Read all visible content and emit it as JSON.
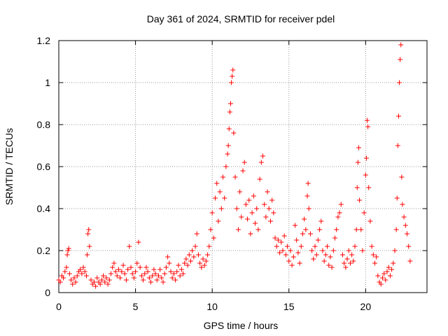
{
  "chart_data": {
    "type": "scatter",
    "title": "Day 361 of 2024, SRMTID for receiver pdel",
    "xlabel": "GPS time / hours",
    "ylabel": "SRMTID / TECUs",
    "xlim": [
      0,
      24
    ],
    "ylim": [
      0,
      1.2
    ],
    "xticks": [
      0,
      5,
      10,
      15,
      20
    ],
    "xtick_labels": [
      "0",
      "5",
      "10",
      "15",
      "20"
    ],
    "yticks": [
      0,
      0.2,
      0.4,
      0.6,
      0.8,
      1.0,
      1.2
    ],
    "ytick_labels": [
      "0",
      "0.2",
      "0.4",
      "0.6",
      "0.8",
      "1",
      "1.2"
    ],
    "grid": true,
    "marker": "+",
    "color": "#ff0000",
    "series": [
      {
        "name": "SRMTID",
        "points": [
          [
            0.0,
            0.06
          ],
          [
            0.1,
            0.05
          ],
          [
            0.2,
            0.08
          ],
          [
            0.3,
            0.07
          ],
          [
            0.4,
            0.1
          ],
          [
            0.5,
            0.12
          ],
          [
            0.55,
            0.18
          ],
          [
            0.6,
            0.2
          ],
          [
            0.65,
            0.21
          ],
          [
            0.7,
            0.09
          ],
          [
            0.8,
            0.06
          ],
          [
            0.9,
            0.04
          ],
          [
            1.0,
            0.07
          ],
          [
            1.1,
            0.05
          ],
          [
            1.2,
            0.08
          ],
          [
            1.3,
            0.1
          ],
          [
            1.4,
            0.11
          ],
          [
            1.5,
            0.09
          ],
          [
            1.6,
            0.12
          ],
          [
            1.7,
            0.1
          ],
          [
            1.8,
            0.08
          ],
          [
            1.85,
            0.18
          ],
          [
            1.9,
            0.28
          ],
          [
            1.95,
            0.3
          ],
          [
            2.0,
            0.22
          ],
          [
            2.1,
            0.06
          ],
          [
            2.2,
            0.04
          ],
          [
            2.3,
            0.05
          ],
          [
            2.4,
            0.03
          ],
          [
            2.5,
            0.07
          ],
          [
            2.6,
            0.05
          ],
          [
            2.7,
            0.04
          ],
          [
            2.8,
            0.06
          ],
          [
            2.9,
            0.08
          ],
          [
            3.0,
            0.05
          ],
          [
            3.1,
            0.07
          ],
          [
            3.2,
            0.04
          ],
          [
            3.3,
            0.06
          ],
          [
            3.4,
            0.09
          ],
          [
            3.5,
            0.12
          ],
          [
            3.6,
            0.14
          ],
          [
            3.7,
            0.1
          ],
          [
            3.8,
            0.08
          ],
          [
            3.9,
            0.11
          ],
          [
            4.0,
            0.07
          ],
          [
            4.1,
            0.1
          ],
          [
            4.2,
            0.13
          ],
          [
            4.3,
            0.09
          ],
          [
            4.4,
            0.06
          ],
          [
            4.5,
            0.11
          ],
          [
            4.6,
            0.22
          ],
          [
            4.7,
            0.12
          ],
          [
            4.8,
            0.09
          ],
          [
            4.9,
            0.07
          ],
          [
            5.0,
            0.1
          ],
          [
            5.1,
            0.14
          ],
          [
            5.2,
            0.24
          ],
          [
            5.3,
            0.12
          ],
          [
            5.4,
            0.08
          ],
          [
            5.5,
            0.06
          ],
          [
            5.6,
            0.09
          ],
          [
            5.7,
            0.12
          ],
          [
            5.8,
            0.1
          ],
          [
            5.9,
            0.07
          ],
          [
            6.0,
            0.05
          ],
          [
            6.1,
            0.08
          ],
          [
            6.2,
            0.11
          ],
          [
            6.3,
            0.09
          ],
          [
            6.4,
            0.06
          ],
          [
            6.5,
            0.08
          ],
          [
            6.6,
            0.11
          ],
          [
            6.7,
            0.07
          ],
          [
            6.8,
            0.05
          ],
          [
            6.9,
            0.09
          ],
          [
            7.0,
            0.12
          ],
          [
            7.1,
            0.17
          ],
          [
            7.2,
            0.14
          ],
          [
            7.3,
            0.1
          ],
          [
            7.4,
            0.07
          ],
          [
            7.5,
            0.09
          ],
          [
            7.6,
            0.06
          ],
          [
            7.7,
            0.1
          ],
          [
            7.8,
            0.13
          ],
          [
            7.9,
            0.08
          ],
          [
            8.0,
            0.11
          ],
          [
            8.1,
            0.09
          ],
          [
            8.2,
            0.14
          ],
          [
            8.3,
            0.16
          ],
          [
            8.4,
            0.13
          ],
          [
            8.5,
            0.18
          ],
          [
            8.6,
            0.15
          ],
          [
            8.7,
            0.2
          ],
          [
            8.8,
            0.17
          ],
          [
            8.9,
            0.22
          ],
          [
            9.0,
            0.28
          ],
          [
            9.1,
            0.18
          ],
          [
            9.2,
            0.14
          ],
          [
            9.3,
            0.12
          ],
          [
            9.4,
            0.16
          ],
          [
            9.5,
            0.13
          ],
          [
            9.6,
            0.15
          ],
          [
            9.7,
            0.18
          ],
          [
            9.8,
            0.22
          ],
          [
            9.9,
            0.3
          ],
          [
            10.0,
            0.38
          ],
          [
            10.1,
            0.26
          ],
          [
            10.2,
            0.45
          ],
          [
            10.3,
            0.52
          ],
          [
            10.4,
            0.34
          ],
          [
            10.5,
            0.48
          ],
          [
            10.6,
            0.4
          ],
          [
            10.7,
            0.55
          ],
          [
            10.8,
            0.45
          ],
          [
            10.9,
            0.6
          ],
          [
            11.0,
            0.66
          ],
          [
            11.05,
            0.7
          ],
          [
            11.1,
            0.78
          ],
          [
            11.15,
            0.86
          ],
          [
            11.2,
            0.9
          ],
          [
            11.25,
            1.0
          ],
          [
            11.3,
            1.03
          ],
          [
            11.35,
            1.06
          ],
          [
            11.4,
            0.76
          ],
          [
            11.5,
            0.55
          ],
          [
            11.6,
            0.4
          ],
          [
            11.7,
            0.3
          ],
          [
            11.8,
            0.48
          ],
          [
            11.9,
            0.36
          ],
          [
            12.0,
            0.58
          ],
          [
            12.1,
            0.62
          ],
          [
            12.2,
            0.42
          ],
          [
            12.3,
            0.35
          ],
          [
            12.4,
            0.44
          ],
          [
            12.5,
            0.28
          ],
          [
            12.6,
            0.38
          ],
          [
            12.7,
            0.46
          ],
          [
            12.8,
            0.33
          ],
          [
            12.9,
            0.4
          ],
          [
            13.0,
            0.3
          ],
          [
            13.1,
            0.54
          ],
          [
            13.2,
            0.62
          ],
          [
            13.3,
            0.65
          ],
          [
            13.4,
            0.42
          ],
          [
            13.5,
            0.36
          ],
          [
            13.6,
            0.48
          ],
          [
            13.7,
            0.4
          ],
          [
            13.8,
            0.34
          ],
          [
            13.9,
            0.44
          ],
          [
            14.0,
            0.38
          ],
          [
            14.1,
            0.26
          ],
          [
            14.2,
            0.22
          ],
          [
            14.3,
            0.25
          ],
          [
            14.4,
            0.19
          ],
          [
            14.5,
            0.24
          ],
          [
            14.6,
            0.2
          ],
          [
            14.7,
            0.27
          ],
          [
            14.8,
            0.18
          ],
          [
            14.9,
            0.22
          ],
          [
            15.0,
            0.15
          ],
          [
            15.1,
            0.2
          ],
          [
            15.2,
            0.13
          ],
          [
            15.3,
            0.17
          ],
          [
            15.4,
            0.32
          ],
          [
            15.5,
            0.25
          ],
          [
            15.6,
            0.19
          ],
          [
            15.7,
            0.14
          ],
          [
            15.8,
            0.22
          ],
          [
            15.9,
            0.28
          ],
          [
            16.0,
            0.35
          ],
          [
            16.1,
            0.3
          ],
          [
            16.2,
            0.46
          ],
          [
            16.25,
            0.52
          ],
          [
            16.3,
            0.4
          ],
          [
            16.4,
            0.28
          ],
          [
            16.5,
            0.2
          ],
          [
            16.6,
            0.16
          ],
          [
            16.7,
            0.22
          ],
          [
            16.8,
            0.18
          ],
          [
            16.9,
            0.25
          ],
          [
            17.0,
            0.3
          ],
          [
            17.1,
            0.34
          ],
          [
            17.2,
            0.2
          ],
          [
            17.3,
            0.15
          ],
          [
            17.4,
            0.18
          ],
          [
            17.5,
            0.22
          ],
          [
            17.6,
            0.13
          ],
          [
            17.7,
            0.17
          ],
          [
            17.8,
            0.12
          ],
          [
            17.9,
            0.2
          ],
          [
            18.0,
            0.26
          ],
          [
            18.1,
            0.3
          ],
          [
            18.2,
            0.36
          ],
          [
            18.3,
            0.38
          ],
          [
            18.4,
            0.42
          ],
          [
            18.5,
            0.18
          ],
          [
            18.6,
            0.14
          ],
          [
            18.7,
            0.12
          ],
          [
            18.8,
            0.16
          ],
          [
            18.9,
            0.2
          ],
          [
            19.0,
            0.14
          ],
          [
            19.1,
            0.18
          ],
          [
            19.2,
            0.15
          ],
          [
            19.3,
            0.22
          ],
          [
            19.4,
            0.3
          ],
          [
            19.45,
            0.5
          ],
          [
            19.5,
            0.62
          ],
          [
            19.55,
            0.69
          ],
          [
            19.6,
            0.44
          ],
          [
            19.7,
            0.3
          ],
          [
            19.8,
            0.2
          ],
          [
            19.9,
            0.38
          ],
          [
            20.0,
            0.56
          ],
          [
            20.05,
            0.64
          ],
          [
            20.1,
            0.82
          ],
          [
            20.15,
            0.79
          ],
          [
            20.2,
            0.5
          ],
          [
            20.3,
            0.34
          ],
          [
            20.4,
            0.22
          ],
          [
            20.5,
            0.18
          ],
          [
            20.6,
            0.14
          ],
          [
            20.7,
            0.17
          ],
          [
            20.8,
            0.08
          ],
          [
            20.9,
            0.05
          ],
          [
            21.0,
            0.04
          ],
          [
            21.1,
            0.07
          ],
          [
            21.2,
            0.09
          ],
          [
            21.3,
            0.06
          ],
          [
            21.4,
            0.1
          ],
          [
            21.5,
            0.12
          ],
          [
            21.6,
            0.08
          ],
          [
            21.7,
            0.11
          ],
          [
            21.8,
            0.14
          ],
          [
            21.9,
            0.2
          ],
          [
            22.0,
            0.3
          ],
          [
            22.05,
            0.45
          ],
          [
            22.1,
            0.7
          ],
          [
            22.15,
            0.84
          ],
          [
            22.2,
            1.0
          ],
          [
            22.25,
            1.11
          ],
          [
            22.3,
            1.18
          ],
          [
            22.35,
            0.55
          ],
          [
            22.4,
            0.42
          ],
          [
            22.5,
            0.36
          ],
          [
            22.6,
            0.32
          ],
          [
            22.7,
            0.28
          ],
          [
            22.8,
            0.22
          ],
          [
            22.9,
            0.15
          ]
        ]
      }
    ]
  }
}
